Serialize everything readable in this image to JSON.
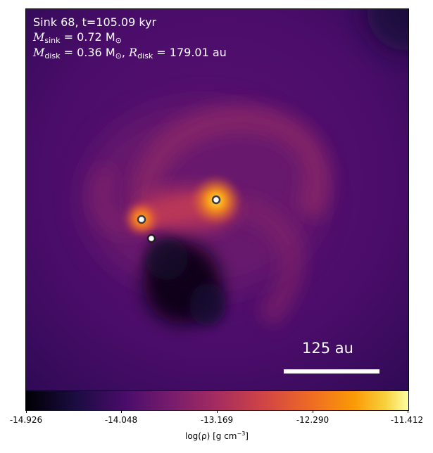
{
  "annotation": {
    "sink_line": "Sink 68, t=105.09 kyr",
    "sink_mass_label": "M",
    "sink_mass_sub": "sink",
    "sink_mass_value": " = 0.72 M",
    "sink_mass_unit": "⊙",
    "disk_mass_label": "M",
    "disk_mass_sub": "disk",
    "disk_mass_value": " = 0.36 M",
    "disk_mass_unit": "⊙",
    "separator": ", ",
    "disk_radius_label": "R",
    "disk_radius_sub": "disk",
    "disk_radius_value": " = 179.01 au"
  },
  "scale_bar": {
    "label": "125 au"
  },
  "colorbar": {
    "colormap": "inferno",
    "ticks": [
      "-14.926",
      "-14.048",
      "-13.169",
      "-12.290",
      "-11.412"
    ],
    "label_main": "log(ρ) [g cm",
    "label_exp": "−3",
    "label_close": "]"
  },
  "colors": {
    "sink_marker_fill": "#ffffff",
    "sink_marker_edge": "#3a3a3a"
  }
}
